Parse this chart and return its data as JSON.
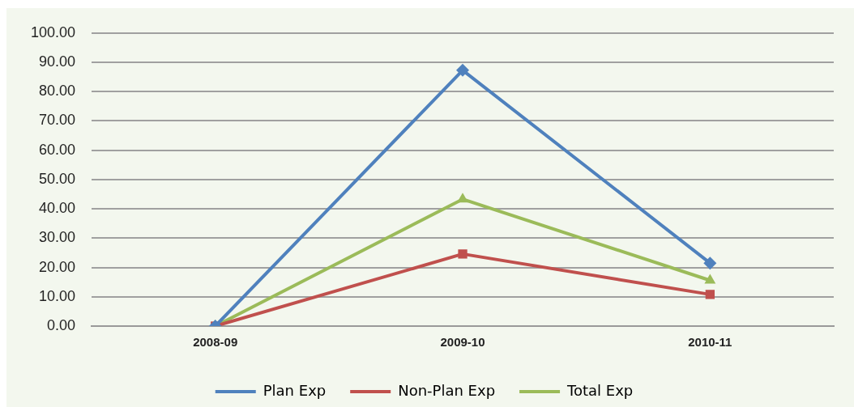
{
  "chart_data": {
    "type": "line",
    "categories": [
      "2008-09",
      "2009-10",
      "2010-11"
    ],
    "series": [
      {
        "name": "Plan Exp",
        "color": "#4f81bd",
        "values": [
          0,
          87.3,
          21.5
        ],
        "marker": "diamond"
      },
      {
        "name": "Non-Plan Exp",
        "color": "#c0504d",
        "values": [
          0,
          24.6,
          10.8
        ],
        "marker": "square"
      },
      {
        "name": "Total Exp",
        "color": "#9bbb59",
        "values": [
          0,
          43.3,
          15.6
        ],
        "marker": "triangle"
      }
    ],
    "ylim": [
      0,
      100
    ],
    "yticks": [
      {
        "value": 0,
        "label": "0.00"
      },
      {
        "value": 10,
        "label": "10.00"
      },
      {
        "value": 20,
        "label": "20.00"
      },
      {
        "value": 30,
        "label": "30.00"
      },
      {
        "value": 40,
        "label": "40.00"
      },
      {
        "value": 50,
        "label": "50.00"
      },
      {
        "value": 60,
        "label": "60.00"
      },
      {
        "value": 70,
        "label": "70.00"
      },
      {
        "value": 80,
        "label": "80.00"
      },
      {
        "value": 90,
        "label": "90.00"
      },
      {
        "value": 100,
        "label": "100.00"
      }
    ],
    "grid": "y",
    "legend": "bottom",
    "line_style": "solid"
  }
}
